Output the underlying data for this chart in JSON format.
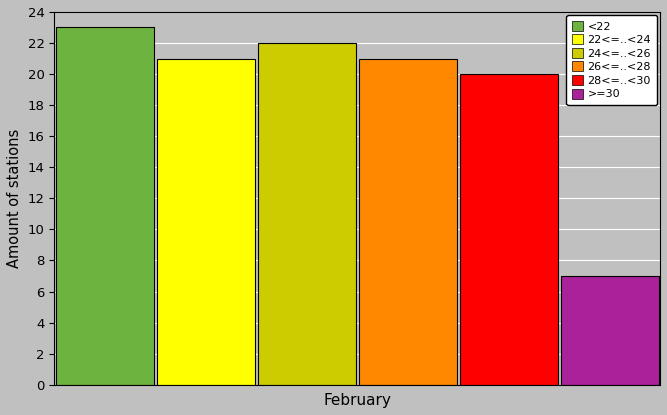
{
  "bars": [
    {
      "label": "<22",
      "value": 23,
      "color": "#6db33f"
    },
    {
      "label": "22<=..<24",
      "value": 21,
      "color": "#ffff00"
    },
    {
      "label": "24<=..<26",
      "value": 22,
      "color": "#cccc00"
    },
    {
      "label": "26<=..<28",
      "value": 21,
      "color": "#ff8800"
    },
    {
      "label": "28<=..<30",
      "value": 20,
      "color": "#ff0000"
    },
    {
      "label": ">=30",
      "value": 7,
      "color": "#aa2299"
    }
  ],
  "ylabel": "Amount of stations",
  "xlabel": "February",
  "ylim": [
    0,
    24
  ],
  "yticks": [
    0,
    2,
    4,
    6,
    8,
    10,
    12,
    14,
    16,
    18,
    20,
    22,
    24
  ],
  "background_color": "#c0c0c0",
  "figsize": [
    6.67,
    4.15
  ],
  "dpi": 100
}
